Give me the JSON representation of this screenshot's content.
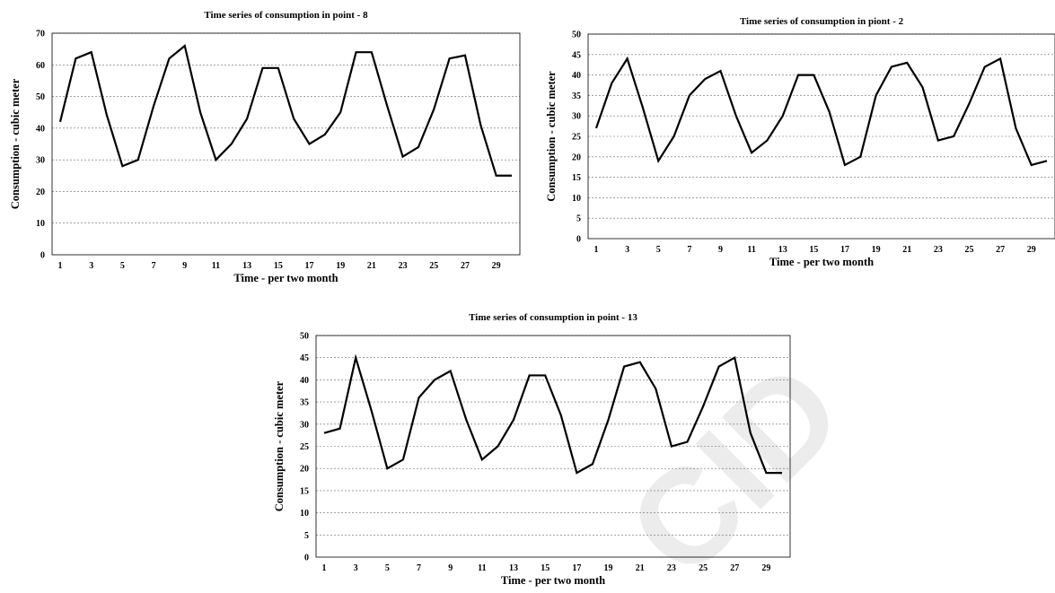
{
  "watermark": "CID",
  "chart_data": [
    {
      "type": "line",
      "title": "Time series of consumption in point - 8",
      "xlabel": "Time - per two month",
      "ylabel": "Consumption - cubic meter",
      "xlim": [
        1,
        30
      ],
      "ylim": [
        0,
        70
      ],
      "yticks": [
        0,
        10,
        20,
        30,
        40,
        50,
        60,
        70
      ],
      "xticks": [
        1,
        3,
        5,
        7,
        9,
        11,
        13,
        15,
        17,
        19,
        21,
        23,
        25,
        27,
        29
      ],
      "grid": true,
      "x": [
        1,
        2,
        3,
        4,
        5,
        6,
        7,
        8,
        9,
        10,
        11,
        12,
        13,
        14,
        15,
        16,
        17,
        18,
        19,
        20,
        21,
        22,
        23,
        24,
        25,
        26,
        27,
        28,
        29,
        30
      ],
      "series": [
        {
          "values": [
            42,
            62,
            64,
            44,
            28,
            30,
            47,
            62,
            66,
            45,
            30,
            35,
            43,
            59,
            59,
            43,
            35,
            38,
            45,
            64,
            64,
            47,
            31,
            34,
            46,
            62,
            63,
            41,
            25,
            25
          ]
        }
      ]
    },
    {
      "type": "line",
      "title": "Time series of consumption in piont - 2",
      "xlabel": "Time - per two month",
      "ylabel": "Consumption - cubic meter",
      "xlim": [
        1,
        30
      ],
      "ylim": [
        0,
        50
      ],
      "yticks": [
        0,
        5,
        10,
        15,
        20,
        25,
        30,
        35,
        40,
        45,
        50
      ],
      "xticks": [
        1,
        3,
        5,
        7,
        9,
        11,
        13,
        15,
        17,
        19,
        21,
        23,
        25,
        27,
        29
      ],
      "grid": true,
      "x": [
        1,
        2,
        3,
        4,
        5,
        6,
        7,
        8,
        9,
        10,
        11,
        12,
        13,
        14,
        15,
        16,
        17,
        18,
        19,
        20,
        21,
        22,
        23,
        24,
        25,
        26,
        27,
        28,
        29,
        30
      ],
      "series": [
        {
          "values": [
            27,
            38,
            44,
            32,
            19,
            25,
            35,
            39,
            41,
            30,
            21,
            24,
            30,
            40,
            40,
            31,
            18,
            20,
            35,
            42,
            43,
            37,
            24,
            25,
            33,
            42,
            44,
            27,
            18,
            19
          ]
        }
      ]
    },
    {
      "type": "line",
      "title": "Time series of consumption in point - 13",
      "xlabel": "Time - per two month",
      "ylabel": "Consumption - cubic meter",
      "xlim": [
        1,
        30
      ],
      "ylim": [
        0,
        50
      ],
      "yticks": [
        0,
        5,
        10,
        15,
        20,
        25,
        30,
        35,
        40,
        45,
        50
      ],
      "xticks": [
        1,
        3,
        5,
        7,
        9,
        11,
        13,
        15,
        17,
        19,
        21,
        23,
        25,
        27,
        29
      ],
      "grid": true,
      "x": [
        1,
        2,
        3,
        4,
        5,
        6,
        7,
        8,
        9,
        10,
        11,
        12,
        13,
        14,
        15,
        16,
        17,
        18,
        19,
        20,
        21,
        22,
        23,
        24,
        25,
        26,
        27,
        28,
        29,
        30
      ],
      "series": [
        {
          "values": [
            28,
            29,
            45,
            33,
            20,
            22,
            36,
            40,
            42,
            31,
            22,
            25,
            31,
            41,
            41,
            32,
            19,
            21,
            31,
            43,
            44,
            38,
            25,
            26,
            34,
            43,
            45,
            28,
            19,
            19
          ]
        }
      ]
    }
  ]
}
